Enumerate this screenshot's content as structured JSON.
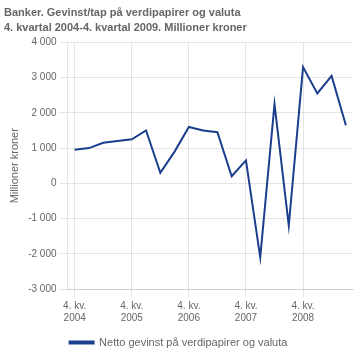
{
  "chart_data": {
    "type": "line",
    "title": "Banker. Gevinst/tap på verdipapirer og valuta",
    "subtitle": "4. kvartal 2004-4. kvartal 2009. Millioner kroner",
    "ylabel": "Millioner kroner",
    "categories": [
      "4. kv.\n2004",
      null,
      null,
      null,
      "4. kv.\n2005",
      null,
      null,
      null,
      "4. kv.\n2006",
      null,
      null,
      null,
      "4. kv.\n2007",
      null,
      null,
      null,
      "4. kv.\n2008",
      null,
      null,
      null
    ],
    "series": [
      {
        "name": "Netto gevinst på verdipapirer og valuta",
        "color": "#1b3f8c",
        "values": [
          950,
          1000,
          1150,
          1200,
          1250,
          1500,
          300,
          900,
          1600,
          1500,
          1450,
          200,
          650,
          -2100,
          2250,
          -1200,
          3300,
          2550,
          3050,
          1650
        ]
      }
    ],
    "ylim": [
      -3000,
      4000
    ],
    "yticks": [
      {
        "value": -3000,
        "label": "-3 000"
      },
      {
        "value": -2000,
        "label": "-2 000"
      },
      {
        "value": -1000,
        "label": "-1 000"
      },
      0,
      {
        "value": 1000,
        "label": "1 000"
      },
      {
        "value": 2000,
        "label": "2 000"
      },
      {
        "value": 3000,
        "label": "3 000"
      },
      {
        "value": 4000,
        "label": "4 000"
      }
    ],
    "grid": true,
    "legend": "bottom"
  }
}
